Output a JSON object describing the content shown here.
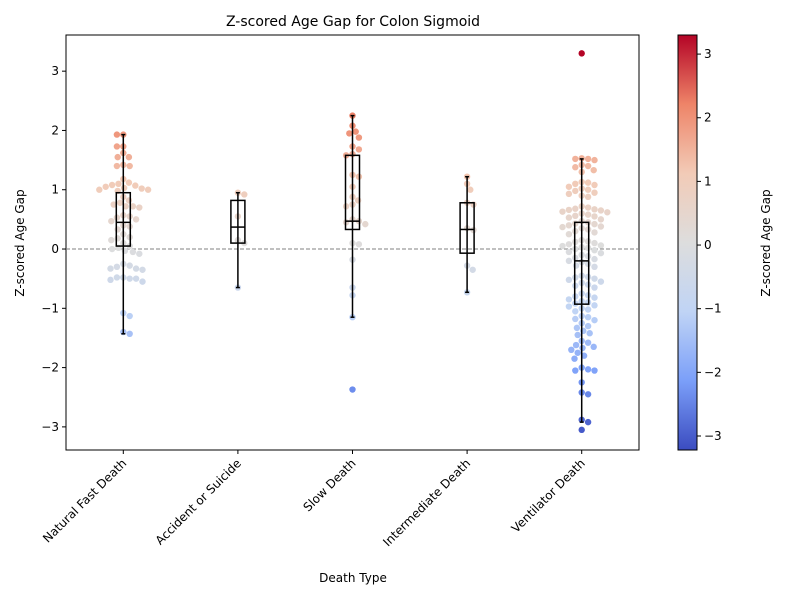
{
  "chart_data": {
    "type": "swarm",
    "title": "Z-scored Age Gap for Colon Sigmoid",
    "x_label": "Death Type",
    "y_label": "Z-scored Age Gap",
    "colorbar_label": "Z-scored Age Gap",
    "categories": [
      "Natural Fast Death",
      "Accident or Suicide",
      "Slow Death",
      "Intermediate Death",
      "Ventilator Death"
    ],
    "values": [
      [
        1.93,
        1.93,
        1.73,
        1.73,
        1.62,
        1.55,
        1.55,
        1.42,
        1.4,
        1.4,
        1.18,
        1.12,
        1.1,
        1.08,
        1.07,
        1.05,
        1.03,
        1.02,
        1.0,
        1.0,
        0.98,
        0.88,
        0.82,
        0.78,
        0.75,
        0.72,
        0.72,
        0.7,
        0.57,
        0.55,
        0.53,
        0.5,
        0.47,
        0.4,
        0.38,
        0.33,
        0.25,
        0.2,
        0.18,
        0.15,
        0.1,
        0.05,
        0.02,
        0.0,
        -0.03,
        -0.05,
        -0.08,
        -0.25,
        -0.28,
        -0.3,
        -0.33,
        -0.33,
        -0.35,
        -0.48,
        -0.48,
        -0.5,
        -0.5,
        -0.52,
        -0.55,
        -1.08,
        -1.13,
        -1.4,
        -1.43
      ],
      [
        0.95,
        0.92,
        0.55,
        0.15,
        0.1,
        -0.65
      ],
      [
        2.25,
        2.08,
        1.98,
        1.95,
        1.88,
        1.73,
        1.68,
        1.6,
        1.58,
        1.25,
        1.22,
        1.05,
        0.88,
        0.82,
        0.75,
        0.72,
        0.5,
        0.47,
        0.45,
        0.42,
        0.1,
        0.08,
        -0.18,
        -0.65,
        -0.78,
        -1.15,
        -2.37
      ],
      [
        1.22,
        1.1,
        1.0,
        0.78,
        0.75,
        0.35,
        0.32,
        -0.28,
        -0.35,
        -0.73
      ],
      [
        3.3,
        1.53,
        1.52,
        1.52,
        1.5,
        1.42,
        1.4,
        1.38,
        1.33,
        1.3,
        1.13,
        1.12,
        1.1,
        1.08,
        1.05,
        1.02,
        1.0,
        0.98,
        0.95,
        0.93,
        0.9,
        0.88,
        0.72,
        0.7,
        0.68,
        0.67,
        0.66,
        0.65,
        0.63,
        0.62,
        0.6,
        0.58,
        0.56,
        0.55,
        0.53,
        0.5,
        0.47,
        0.45,
        0.43,
        0.42,
        0.4,
        0.38,
        0.37,
        0.35,
        0.33,
        0.3,
        0.28,
        0.25,
        0.15,
        0.13,
        0.12,
        0.1,
        0.08,
        0.06,
        0.05,
        0.03,
        0.02,
        0.0,
        -0.02,
        -0.05,
        -0.07,
        -0.1,
        -0.12,
        -0.15,
        -0.17,
        -0.2,
        -0.22,
        -0.25,
        -0.28,
        -0.3,
        -0.45,
        -0.47,
        -0.48,
        -0.5,
        -0.52,
        -0.55,
        -0.57,
        -0.6,
        -0.62,
        -0.65,
        -0.75,
        -0.78,
        -0.8,
        -0.82,
        -0.85,
        -0.88,
        -0.9,
        -0.92,
        -0.95,
        -0.97,
        -1.0,
        -1.02,
        -1.05,
        -1.13,
        -1.15,
        -1.18,
        -1.2,
        -1.25,
        -1.3,
        -1.33,
        -1.38,
        -1.42,
        -1.45,
        -1.55,
        -1.58,
        -1.62,
        -1.65,
        -1.67,
        -1.7,
        -1.75,
        -1.8,
        -1.85,
        -2.0,
        -2.03,
        -2.05,
        -2.05,
        -2.25,
        -2.42,
        -2.45,
        -2.88,
        -2.92,
        -3.05
      ]
    ],
    "boxes": [
      {
        "whislo": -1.43,
        "q1": 0.05,
        "median": 0.45,
        "q3": 0.95,
        "whishi": 1.93
      },
      {
        "whislo": -0.65,
        "q1": 0.1,
        "median": 0.37,
        "q3": 0.82,
        "whishi": 0.95
      },
      {
        "whislo": -1.15,
        "q1": 0.33,
        "median": 0.47,
        "q3": 1.58,
        "whishi": 2.25
      },
      {
        "whislo": -0.73,
        "q1": -0.07,
        "median": 0.33,
        "q3": 0.78,
        "whishi": 1.22
      },
      {
        "whislo": -2.92,
        "q1": -0.93,
        "median": -0.2,
        "q3": 0.45,
        "whishi": 1.52
      }
    ],
    "ylim": [
      -3.39,
      3.61
    ],
    "yticks": [
      {
        "value": -3,
        "label": "−3"
      },
      {
        "value": -2,
        "label": "−2"
      },
      {
        "value": -1,
        "label": "−1"
      },
      0,
      1,
      2,
      3
    ],
    "hline": 0,
    "colormap": [
      "#3b4cc0",
      "#7b9ff9",
      "#c0d4f5",
      "#dddddd",
      "#f2cbb7",
      "#ee8468",
      "#b40426"
    ],
    "clim": [
      -3.22,
      3.3
    ],
    "cticks": [
      {
        "value": -3,
        "label": "−3"
      },
      {
        "value": -2,
        "label": "−2"
      },
      {
        "value": -1,
        "label": "−1"
      },
      0,
      1,
      2,
      3
    ]
  }
}
